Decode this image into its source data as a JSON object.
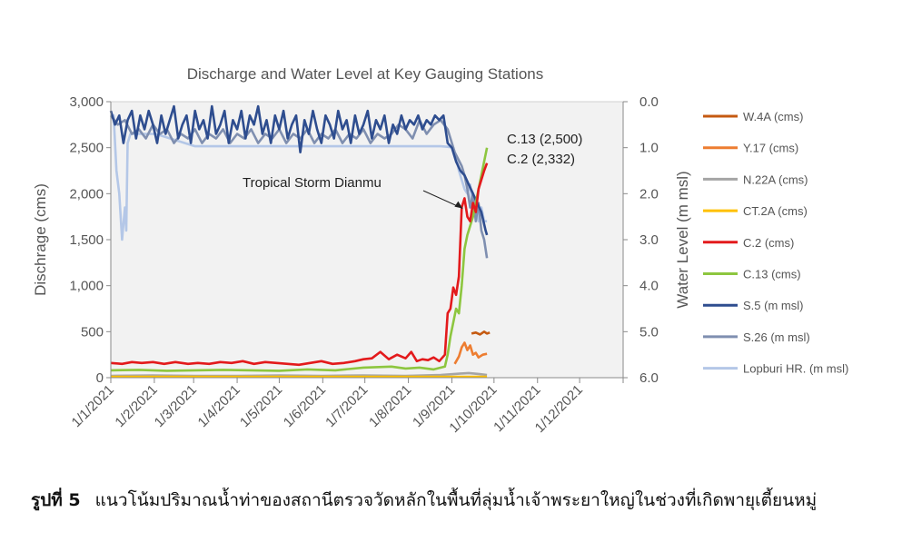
{
  "chart_data": {
    "type": "line",
    "title": "Discharge and Water Level at Key Gauging Stations",
    "ylabel": "Dischrage (cms)",
    "y2label": "Water Level (m msl)",
    "ylim": [
      0,
      3000
    ],
    "y2lim": [
      6.0,
      0.0
    ],
    "y_ticks": [
      "0",
      "500",
      "1,000",
      "1,500",
      "2,000",
      "2,500",
      "3,000"
    ],
    "y2_ticks": [
      "6.0",
      "5.0",
      "4.0",
      "3.0",
      "2.0",
      "1.0",
      "0.0"
    ],
    "x_ticks": [
      "1/1/2021",
      "1/2/2021",
      "1/3/2021",
      "1/4/2021",
      "1/5/2021",
      "1/6/2021",
      "1/7/2021",
      "1/8/2021",
      "1/9/2021",
      "1/10/2021",
      "1/11/2021",
      "1/12/2021"
    ],
    "x_unit": "day of year 2021 (0 = 1 Jan)",
    "xlim": [
      0,
      365
    ],
    "series": [
      {
        "name": "W.4A (cms)",
        "axis": "left",
        "color": "#c55a11",
        "x": [
          257,
          260,
          263,
          266,
          268,
          270
        ],
        "values": [
          480,
          490,
          470,
          500,
          480,
          490
        ]
      },
      {
        "name": "Y.17 (cms)",
        "axis": "left",
        "color": "#ed7d31",
        "x": [
          245,
          248,
          250,
          252,
          254,
          256,
          258,
          260,
          262,
          265,
          268
        ],
        "values": [
          150,
          230,
          330,
          380,
          300,
          350,
          250,
          270,
          220,
          250,
          260
        ]
      },
      {
        "name": "N.22A (cms)",
        "axis": "left",
        "color": "#a5a5a5",
        "x": [
          0,
          30,
          60,
          90,
          120,
          150,
          180,
          210,
          235,
          245,
          255,
          262,
          268
        ],
        "values": [
          20,
          25,
          20,
          20,
          25,
          20,
          25,
          20,
          30,
          40,
          50,
          40,
          30
        ]
      },
      {
        "name": "CT.2A (cms)",
        "axis": "left",
        "color": "#ffc000",
        "x": [
          0,
          60,
          120,
          180,
          240,
          268
        ],
        "values": [
          10,
          10,
          10,
          10,
          10,
          10
        ]
      },
      {
        "name": "C.2 (cms)",
        "axis": "left",
        "color": "#e31a1c",
        "x": [
          0,
          8,
          15,
          22,
          30,
          38,
          46,
          55,
          62,
          70,
          78,
          86,
          94,
          102,
          110,
          118,
          126,
          134,
          142,
          150,
          158,
          166,
          174,
          180,
          186,
          192,
          198,
          204,
          210,
          214,
          218,
          222,
          226,
          230,
          234,
          238,
          240,
          242,
          244,
          246,
          248,
          250,
          252,
          254,
          256,
          258,
          260,
          262,
          264,
          266,
          268
        ],
        "values": [
          160,
          150,
          170,
          160,
          170,
          150,
          170,
          150,
          160,
          150,
          170,
          160,
          180,
          150,
          170,
          160,
          150,
          140,
          160,
          180,
          150,
          160,
          180,
          200,
          210,
          280,
          200,
          250,
          210,
          280,
          180,
          200,
          190,
          220,
          180,
          250,
          700,
          750,
          980,
          900,
          1100,
          1850,
          1950,
          1750,
          1700,
          1900,
          1800,
          2050,
          2150,
          2250,
          2332
        ]
      },
      {
        "name": "C.13 (cms)",
        "axis": "left",
        "color": "#8dc63f",
        "x": [
          0,
          20,
          40,
          60,
          80,
          100,
          120,
          140,
          160,
          180,
          200,
          210,
          220,
          230,
          238,
          240,
          242,
          244,
          246,
          248,
          250,
          252,
          254,
          256,
          258,
          260,
          262,
          264,
          266,
          268
        ],
        "values": [
          80,
          85,
          75,
          80,
          85,
          80,
          75,
          90,
          80,
          110,
          120,
          100,
          110,
          90,
          120,
          250,
          450,
          600,
          750,
          700,
          1000,
          1400,
          1550,
          1650,
          1750,
          1900,
          2050,
          2200,
          2350,
          2500
        ]
      },
      {
        "name": "S.5 (m msl)",
        "axis": "right",
        "color": "#2e4d8f",
        "x": [
          0,
          3,
          6,
          9,
          12,
          15,
          18,
          21,
          24,
          27,
          30,
          33,
          36,
          39,
          42,
          45,
          48,
          51,
          54,
          57,
          60,
          63,
          66,
          69,
          72,
          75,
          78,
          81,
          84,
          87,
          90,
          93,
          96,
          99,
          102,
          105,
          108,
          111,
          114,
          117,
          120,
          123,
          126,
          129,
          132,
          135,
          138,
          141,
          144,
          147,
          150,
          153,
          156,
          159,
          162,
          165,
          168,
          171,
          174,
          177,
          180,
          183,
          186,
          189,
          192,
          195,
          198,
          201,
          204,
          207,
          210,
          213,
          216,
          219,
          222,
          225,
          228,
          231,
          234,
          237,
          240,
          243,
          246,
          249,
          252,
          255,
          258,
          261,
          264,
          267,
          268
        ],
        "values": [
          0.2,
          0.5,
          0.3,
          0.9,
          0.4,
          0.2,
          0.8,
          0.3,
          0.6,
          0.2,
          0.5,
          0.9,
          0.3,
          0.7,
          0.4,
          0.1,
          0.8,
          0.5,
          0.3,
          0.9,
          0.2,
          0.6,
          0.4,
          0.8,
          0.1,
          0.7,
          0.5,
          0.2,
          0.9,
          0.4,
          0.6,
          0.2,
          0.8,
          0.3,
          0.5,
          0.1,
          0.7,
          0.4,
          0.9,
          0.3,
          0.6,
          0.2,
          0.8,
          0.5,
          0.3,
          1.1,
          0.4,
          0.7,
          0.2,
          0.6,
          0.9,
          0.3,
          0.5,
          0.8,
          0.2,
          0.6,
          0.4,
          0.9,
          0.3,
          0.7,
          0.5,
          0.2,
          0.8,
          0.4,
          0.6,
          0.3,
          0.9,
          0.5,
          0.7,
          0.3,
          0.6,
          0.4,
          0.5,
          0.3,
          0.6,
          0.4,
          0.5,
          0.3,
          0.4,
          0.3,
          0.9,
          1.0,
          1.3,
          1.5,
          1.6,
          1.8,
          2.0,
          2.2,
          2.4,
          2.8,
          2.9
        ]
      },
      {
        "name": "S.26 (m msl)",
        "axis": "right",
        "color": "#7f8fb0",
        "x": [
          0,
          5,
          10,
          15,
          20,
          25,
          30,
          35,
          40,
          45,
          50,
          55,
          60,
          65,
          70,
          75,
          80,
          85,
          90,
          95,
          100,
          105,
          110,
          115,
          120,
          125,
          130,
          135,
          140,
          145,
          150,
          155,
          160,
          165,
          170,
          175,
          180,
          185,
          190,
          195,
          200,
          205,
          210,
          215,
          220,
          225,
          230,
          235,
          240,
          245,
          250,
          252,
          254,
          256,
          258,
          260,
          262,
          264,
          266,
          268
        ],
        "values": [
          0.3,
          0.5,
          0.4,
          0.7,
          0.6,
          0.8,
          0.5,
          0.7,
          0.6,
          0.9,
          0.7,
          0.8,
          0.6,
          0.9,
          0.7,
          0.8,
          0.6,
          0.9,
          0.7,
          0.8,
          0.6,
          0.9,
          0.7,
          0.8,
          0.6,
          0.9,
          0.7,
          0.8,
          0.6,
          0.9,
          0.7,
          0.8,
          0.6,
          0.9,
          0.7,
          0.8,
          0.6,
          0.9,
          0.7,
          0.8,
          0.7,
          0.5,
          0.6,
          0.8,
          0.4,
          0.7,
          0.5,
          0.4,
          0.6,
          1.1,
          1.4,
          1.6,
          1.9,
          2.3,
          2.0,
          2.6,
          2.2,
          2.8,
          3.0,
          3.4
        ]
      },
      {
        "name": "Lopburi HR. (m msl)",
        "axis": "right",
        "color": "#b4c7e7",
        "x": [
          0,
          2,
          4,
          6,
          8,
          10,
          11,
          12,
          14,
          16,
          18,
          20,
          22,
          24,
          26,
          28,
          30,
          32,
          60,
          90,
          120,
          150,
          180,
          210,
          235,
          240,
          244,
          246,
          248,
          250,
          252,
          254,
          256,
          258,
          260,
          262,
          264,
          266,
          268
        ],
        "values": [
          0.3,
          0.3,
          1.5,
          2.0,
          3.0,
          2.3,
          2.8,
          0.9,
          0.7,
          0.7,
          0.7,
          0.7,
          0.7,
          0.7,
          0.7,
          0.7,
          0.7,
          0.7,
          0.97,
          0.97,
          0.97,
          0.97,
          0.97,
          0.97,
          0.97,
          0.98,
          1.0,
          1.2,
          1.5,
          1.7,
          1.9,
          2.0,
          1.8,
          2.4,
          2.1,
          2.6,
          2.3,
          2.6,
          2.6
        ]
      }
    ],
    "annotations": [
      {
        "text": "Tropical Storm Dianmu",
        "x": 252,
        "y": 1800
      },
      {
        "text": "C.13 (2,500)",
        "x": 268,
        "y": 2500
      },
      {
        "text": "C.2 (2,332)",
        "x": 268,
        "y": 2332
      }
    ],
    "legend_position": "right",
    "grid": false
  },
  "caption": {
    "label": "รูปที่ 5",
    "text": "แนวโน้มปริมาณน้ำท่าของสถานีตรวจวัดหลักในพื้นที่ลุ่มน้ำเจ้าพระยาใหญ่ในช่วงที่เกิดพายุเตี้ยนหมู่"
  }
}
